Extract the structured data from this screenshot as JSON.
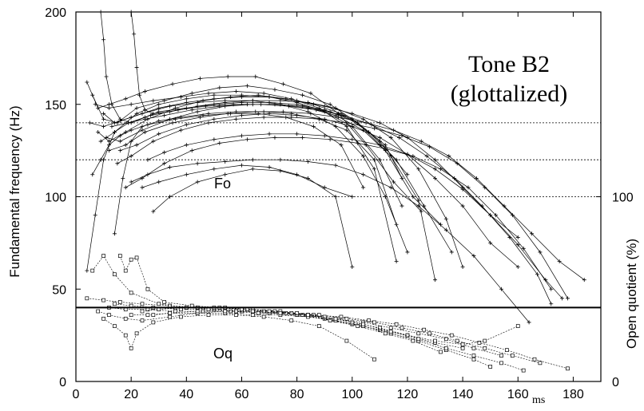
{
  "chart_data": {
    "type": "line",
    "title": "Tone B2",
    "subtitle": "(glottalized)",
    "xlabel_unit": "ms",
    "ylabel": "Fundamental frequency (Hz)",
    "y2label": "Open quotient (%)",
    "xlim": [
      0,
      190
    ],
    "ylim": [
      0,
      200
    ],
    "y2lim": [
      0,
      100
    ],
    "x_ticks": [
      "0",
      "20",
      "40",
      "60",
      "80",
      "100",
      "120",
      "140",
      "160",
      "180"
    ],
    "y_ticks": [
      "0",
      "50",
      "100",
      "150",
      "200"
    ],
    "y2_ticks": [
      "0",
      "100"
    ],
    "reference_lines_hz": [
      140,
      120,
      100
    ],
    "oq_reference_line": 40,
    "labels": {
      "fo": "Fo",
      "oq": "Oq"
    },
    "grid": false,
    "series": [
      {
        "group": "Fo",
        "x": [
          4,
          8,
          12,
          18,
          25,
          35,
          45,
          55,
          65,
          75,
          85,
          95,
          105,
          115,
          125
        ],
        "y": [
          162,
          148,
          150,
          153,
          157,
          161,
          164,
          165,
          165,
          161,
          156,
          145,
          128,
          108,
          92
        ]
      },
      {
        "group": "Fo",
        "x": [
          6,
          10,
          15,
          22,
          32,
          42,
          52,
          62,
          72,
          82,
          92,
          102,
          112,
          122,
          132
        ],
        "y": [
          155,
          142,
          140,
          148,
          152,
          156,
          159,
          160,
          158,
          155,
          150,
          140,
          125,
          100,
          85
        ]
      },
      {
        "group": "Fo",
        "x": [
          8,
          12,
          18,
          26,
          36,
          46,
          56,
          66,
          76,
          86,
          96,
          106,
          116,
          126,
          136
        ],
        "y": [
          135,
          130,
          135,
          142,
          148,
          152,
          154,
          155,
          153,
          150,
          145,
          135,
          120,
          95,
          70
        ]
      },
      {
        "group": "Fo",
        "x": [
          10,
          14,
          20,
          30,
          40,
          50,
          60,
          70,
          80,
          90,
          100,
          110,
          120,
          130,
          140,
          150,
          160
        ],
        "y": [
          145,
          140,
          143,
          148,
          151,
          153,
          154,
          154,
          152,
          149,
          145,
          140,
          132,
          120,
          105,
          90,
          78
        ]
      },
      {
        "group": "Fo",
        "x": [
          12,
          18,
          25,
          35,
          45,
          55,
          65,
          75,
          85,
          95,
          105,
          115,
          125,
          135,
          145,
          155,
          165,
          175,
          184
        ],
        "y": [
          125,
          128,
          135,
          140,
          143,
          145,
          146,
          146,
          145,
          143,
          140,
          136,
          130,
          122,
          110,
          95,
          80,
          65,
          55
        ]
      },
      {
        "group": "Fo",
        "x": [
          15,
          20,
          28,
          38,
          48,
          58,
          68,
          78,
          88,
          98,
          108,
          118,
          128,
          138,
          148,
          158,
          168,
          178
        ],
        "y": [
          118,
          122,
          130,
          136,
          140,
          142,
          143,
          143,
          142,
          140,
          137,
          133,
          127,
          118,
          105,
          90,
          70,
          45
        ]
      },
      {
        "group": "Fo",
        "x": [
          18,
          24,
          32,
          42,
          52,
          62,
          72,
          82,
          92,
          102,
          112,
          122,
          132,
          142,
          152,
          162,
          172
        ],
        "y": [
          105,
          110,
          118,
          125,
          129,
          131,
          132,
          132,
          131,
          129,
          126,
          122,
          115,
          105,
          90,
          72,
          50
        ]
      },
      {
        "group": "Fo",
        "x": [
          20,
          26,
          34,
          44,
          54,
          64,
          74,
          84,
          94,
          104,
          114,
          124,
          134,
          144,
          154,
          164
        ],
        "y": [
          108,
          112,
          116,
          118,
          119,
          120,
          120,
          119,
          117,
          112,
          105,
          95,
          82,
          68,
          50,
          32
        ]
      },
      {
        "group": "Fo",
        "x": [
          24,
          30,
          40,
          50,
          60,
          70,
          80,
          90,
          100
        ],
        "y": [
          105,
          108,
          112,
          115,
          117,
          116,
          112,
          105,
          100
        ]
      },
      {
        "group": "Fo",
        "x": [
          28,
          34,
          44,
          54,
          64,
          74,
          84,
          94,
          100
        ],
        "y": [
          92,
          100,
          108,
          112,
          115,
          114,
          110,
          100,
          62
        ]
      },
      {
        "group": "Fo",
        "x": [
          9,
          14,
          22,
          30,
          40,
          50,
          60,
          70,
          80,
          90,
          100,
          110,
          118
        ],
        "y": [
          130,
          135,
          145,
          150,
          153,
          155,
          155,
          154,
          151,
          146,
          138,
          120,
          95
        ]
      },
      {
        "group": "Fo",
        "x": [
          7,
          12,
          20,
          28,
          38,
          48,
          58,
          68,
          78,
          88,
          98,
          108,
          116
        ],
        "y": [
          150,
          148,
          150,
          152,
          154,
          156,
          157,
          156,
          153,
          148,
          138,
          115,
          65
        ]
      },
      {
        "group": "Fo",
        "x": [
          5,
          10,
          16,
          24,
          34,
          44,
          54,
          64,
          74,
          84,
          94,
          104,
          112,
          120
        ],
        "y": [
          140,
          138,
          141,
          145,
          149,
          151,
          152,
          152,
          150,
          146,
          138,
          122,
          100,
          70
        ]
      },
      {
        "group": "Fo",
        "x": [
          11,
          16,
          24,
          34,
          44,
          54,
          64,
          74,
          84,
          94,
          104,
          114,
          124,
          130
        ],
        "y": [
          132,
          130,
          136,
          142,
          146,
          149,
          150,
          150,
          148,
          144,
          136,
          122,
          98,
          55
        ]
      },
      {
        "group": "Fo",
        "x": [
          13,
          19,
          27,
          37,
          47,
          57,
          67,
          77,
          87,
          97,
          107,
          117,
          127,
          137,
          147,
          157,
          167,
          172
        ],
        "y": [
          138,
          140,
          144,
          147,
          149,
          150,
          150,
          149,
          147,
          144,
          139,
          132,
          122,
          110,
          95,
          78,
          58,
          42
        ]
      },
      {
        "group": "Fo",
        "x": [
          16,
          22,
          30,
          40,
          50,
          60,
          70,
          80,
          90,
          100,
          110,
          120,
          130,
          140,
          150,
          160
        ],
        "y": [
          125,
          128,
          134,
          139,
          142,
          144,
          145,
          144,
          142,
          138,
          132,
          123,
          110,
          95,
          75,
          62
        ]
      },
      {
        "group": "Fo",
        "x": [
          9,
          10,
          11,
          13,
          16,
          20,
          25,
          30,
          40,
          50,
          60,
          70,
          80,
          90,
          100,
          110,
          120
        ],
        "y": [
          200,
          185,
          165,
          150,
          142,
          140,
          143,
          146,
          148,
          150,
          151,
          151,
          150,
          147,
          142,
          130,
          112
        ]
      },
      {
        "group": "Fo",
        "x": [
          20,
          21,
          22,
          23,
          25,
          28,
          34,
          44,
          54,
          64,
          74,
          84,
          94,
          104,
          114,
          124,
          134,
          140
        ],
        "y": [
          200,
          188,
          170,
          155,
          147,
          145,
          146,
          149,
          151,
          152,
          152,
          151,
          148,
          142,
          132,
          115,
          88,
          62
        ]
      },
      {
        "group": "Fo",
        "x": [
          4,
          7,
          10,
          14,
          19,
          25,
          32,
          42,
          52,
          62,
          72,
          82,
          92,
          102,
          112,
          118
        ],
        "y": [
          60,
          90,
          120,
          135,
          140,
          142,
          144,
          147,
          149,
          150,
          150,
          149,
          146,
          140,
          128,
          110
        ]
      },
      {
        "group": "Fo",
        "x": [
          14,
          17,
          20,
          24,
          30,
          38,
          48,
          58,
          68,
          78,
          88,
          98,
          108,
          116
        ],
        "y": [
          80,
          110,
          130,
          138,
          141,
          143,
          145,
          146,
          146,
          145,
          142,
          136,
          120,
          85
        ]
      },
      {
        "group": "Fo",
        "x": [
          26,
          32,
          40,
          50,
          60,
          70,
          80,
          90,
          100,
          110,
          120,
          130,
          140,
          150,
          160,
          170,
          176
        ],
        "y": [
          120,
          124,
          128,
          131,
          133,
          134,
          134,
          133,
          131,
          128,
          123,
          115,
          104,
          90,
          74,
          55,
          45
        ]
      },
      {
        "group": "Fo",
        "x": [
          6,
          9,
          12,
          16,
          20,
          26,
          36,
          46,
          56,
          66,
          76,
          86,
          96,
          104
        ],
        "y": [
          112,
          120,
          128,
          133,
          136,
          139,
          142,
          144,
          145,
          145,
          143,
          138,
          128,
          105
        ]
      },
      {
        "group": "Oq",
        "x": [
          4,
          10,
          16,
          24,
          34,
          44,
          54,
          64,
          74,
          84,
          94,
          104,
          114,
          124
        ],
        "y": [
          45,
          44,
          43,
          42,
          41,
          40,
          40,
          39,
          38,
          36,
          33,
          30,
          26,
          22
        ]
      },
      {
        "group": "Oq",
        "x": [
          6,
          10,
          14,
          20,
          30,
          40,
          50,
          60,
          70,
          80,
          90,
          100,
          110,
          120,
          130,
          140
        ],
        "y": [
          60,
          68,
          58,
          48,
          42,
          40,
          39,
          38,
          37,
          36,
          34,
          31,
          28,
          25,
          21,
          18
        ]
      },
      {
        "group": "Oq",
        "x": [
          16,
          18,
          20,
          22,
          26,
          32,
          42,
          52,
          62,
          72,
          82,
          92,
          102,
          112,
          122,
          132
        ],
        "y": [
          68,
          60,
          66,
          67,
          50,
          43,
          41,
          40,
          39,
          38,
          36,
          33,
          30,
          26,
          22,
          16
        ]
      },
      {
        "group": "Oq",
        "x": [
          8,
          12,
          18,
          24,
          34,
          44,
          54,
          64,
          74,
          84,
          94,
          104,
          114,
          124,
          134,
          144,
          154
        ],
        "y": [
          38,
          36,
          34,
          33,
          35,
          37,
          38,
          38,
          37,
          36,
          34,
          32,
          29,
          26,
          23,
          18,
          14
        ]
      },
      {
        "group": "Oq",
        "x": [
          10,
          14,
          18,
          20,
          22,
          28,
          38,
          48,
          58,
          68,
          78,
          88,
          98,
          108
        ],
        "y": [
          34,
          30,
          25,
          18,
          26,
          32,
          35,
          36,
          36,
          35,
          33,
          30,
          22,
          12
        ]
      },
      {
        "group": "Oq",
        "x": [
          12,
          18,
          26,
          36,
          46,
          56,
          66,
          76,
          86,
          96,
          106,
          116,
          126,
          136,
          146,
          156,
          166,
          178
        ],
        "y": [
          40,
          39,
          39,
          38,
          38,
          38,
          37,
          37,
          36,
          35,
          33,
          31,
          28,
          25,
          21,
          17,
          12,
          7
        ]
      },
      {
        "group": "Oq",
        "x": [
          14,
          20,
          28,
          38,
          48,
          58,
          68,
          78,
          88,
          98,
          108,
          118,
          128,
          138,
          148,
          158,
          168
        ],
        "y": [
          42,
          41,
          40,
          39,
          39,
          38,
          38,
          37,
          36,
          34,
          32,
          29,
          26,
          22,
          18,
          14,
          10
        ]
      },
      {
        "group": "Oq",
        "x": [
          20,
          26,
          34,
          44,
          54,
          64,
          74,
          84,
          94,
          104,
          114,
          124,
          134,
          144,
          150
        ],
        "y": [
          36,
          36,
          37,
          37,
          37,
          36,
          36,
          35,
          33,
          30,
          26,
          22,
          17,
          12,
          8
        ]
      },
      {
        "group": "Oq",
        "x": [
          24,
          30,
          40,
          50,
          60,
          70,
          80,
          90,
          100,
          110,
          120,
          130,
          140,
          148,
          160
        ],
        "y": [
          38,
          39,
          40,
          40,
          39,
          38,
          37,
          35,
          32,
          29,
          25,
          22,
          20,
          22,
          30
        ]
      },
      {
        "group": "Oq",
        "x": [
          28,
          34,
          44,
          54,
          64,
          74,
          84,
          94,
          104,
          114,
          124,
          134,
          144,
          154,
          162
        ],
        "y": [
          36,
          37,
          38,
          38,
          38,
          37,
          36,
          34,
          31,
          27,
          23,
          18,
          14,
          10,
          6
        ]
      }
    ]
  }
}
